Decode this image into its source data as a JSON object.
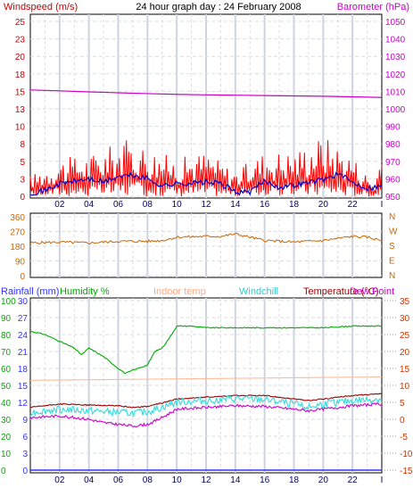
{
  "chart_data": [
    {
      "type": "line",
      "title": "24 hour graph day : 24 February 2008",
      "y_left_label": "Windspeed (m/s)",
      "y_right_label": "Barometer (hPa)",
      "x_ticks": [
        "02",
        "04",
        "06",
        "08",
        "10",
        "12",
        "14",
        "16",
        "18",
        "20",
        "22",
        "I"
      ],
      "y_left_ticks": [
        "25",
        "23",
        "20",
        "18",
        "15",
        "13",
        "10",
        "8",
        "5",
        "3",
        "0"
      ],
      "y_right_ticks": [
        "1050",
        "1040",
        "1030",
        "1020",
        "1010",
        "1000",
        "990",
        "980",
        "970",
        "960",
        "950"
      ],
      "ylim_left": [
        0,
        25
      ],
      "ylim_right": [
        950,
        1050
      ],
      "series": [
        {
          "name": "Barometer (hPa)",
          "color": "#cc00cc",
          "axis": "right",
          "x": [
            0,
            2,
            4,
            6,
            8,
            10,
            12,
            14,
            16,
            18,
            20,
            22,
            24
          ],
          "values": [
            1010.8,
            1010.3,
            1009.7,
            1009.2,
            1008.7,
            1008.3,
            1008.0,
            1007.8,
            1007.6,
            1007.4,
            1007.2,
            1006.9,
            1006.5
          ]
        },
        {
          "name": "Wind gust",
          "color": "#ff0000",
          "axis": "left",
          "x": [
            0,
            2,
            4,
            6,
            7,
            8,
            10,
            12,
            14,
            16,
            18,
            20,
            22,
            23.5,
            24
          ],
          "values": [
            2.5,
            4.5,
            5.0,
            6.5,
            7.0,
            6.0,
            4.5,
            5.5,
            3.0,
            5.5,
            5.5,
            7.5,
            5.0,
            1.5,
            6.0
          ]
        },
        {
          "name": "Wind average",
          "color": "#0000cc",
          "axis": "left",
          "x": [
            0,
            1,
            2,
            4,
            5,
            6,
            7,
            8,
            9,
            10,
            12,
            13,
            14,
            15,
            16,
            17,
            18,
            19,
            20,
            21,
            22,
            23,
            24
          ],
          "values": [
            0.5,
            0.8,
            1.8,
            2.5,
            2.0,
            2.8,
            3.0,
            2.5,
            1.5,
            1.8,
            2.0,
            1.8,
            0.6,
            0.6,
            2.2,
            1.3,
            1.6,
            2.0,
            2.4,
            3.2,
            2.0,
            1.2,
            1.5
          ]
        }
      ]
    },
    {
      "type": "line",
      "y_left_ticks": [
        "360",
        "270",
        "180",
        "90",
        "0"
      ],
      "y_right_ticks": [
        "N",
        "W",
        "S",
        "E",
        "N"
      ],
      "ylim": [
        0,
        360
      ],
      "series": [
        {
          "name": "Wind direction",
          "color": "#cc6600",
          "x": [
            0,
            2,
            4,
            6,
            8,
            9,
            10,
            12,
            13,
            14,
            15,
            16,
            18,
            20,
            22,
            23,
            24
          ],
          "values": [
            200,
            205,
            200,
            210,
            210,
            215,
            235,
            240,
            240,
            255,
            235,
            215,
            205,
            215,
            240,
            235,
            215
          ]
        }
      ]
    },
    {
      "type": "line",
      "legend": [
        "Rainfall (mm)",
        "Humidity %",
        "Indoor temp",
        "Windchill",
        "Temperature (°C)",
        "Dew Point"
      ],
      "y_rain_ticks": [
        "30",
        "27",
        "24",
        "21",
        "18",
        "15",
        "12",
        "9",
        "6",
        "3",
        "0"
      ],
      "y_hum_ticks": [
        "100",
        "90",
        "80",
        "70",
        "60",
        "50",
        "40",
        "30",
        "20",
        "10",
        "0"
      ],
      "y_right_ticks": [
        "35",
        "30",
        "25",
        "20",
        "15",
        "10",
        "5",
        "0",
        "-5",
        "-10",
        "-15"
      ],
      "ylim_temp": [
        -15,
        35
      ],
      "series": [
        {
          "name": "Humidity %",
          "color": "#00aa00",
          "axis": "humidity",
          "x": [
            0,
            1,
            2,
            3,
            3.5,
            4,
            5,
            6,
            6.5,
            7,
            8,
            8.5,
            9,
            9.5,
            10,
            11,
            12,
            14,
            16,
            18,
            20,
            22,
            24
          ],
          "values": [
            82,
            80,
            76,
            72,
            68,
            72,
            67,
            60,
            57,
            59,
            62,
            70,
            72,
            78,
            85,
            85,
            84,
            84,
            84,
            84,
            84,
            85,
            85
          ]
        },
        {
          "name": "Indoor temp",
          "color": "#ffbb99",
          "axis": "temp",
          "x": [
            0,
            24
          ],
          "values": [
            11.5,
            12.5
          ]
        },
        {
          "name": "Temperature (°C)",
          "color": "#990000",
          "axis": "temp",
          "x": [
            0,
            2,
            4,
            6,
            7,
            8,
            9,
            10,
            12,
            14,
            16,
            18,
            19,
            20,
            22,
            24
          ],
          "values": [
            3.5,
            4.5,
            4.2,
            4.0,
            3.5,
            3.8,
            4.8,
            6.0,
            6.5,
            7.0,
            7.0,
            6.0,
            5.5,
            6.0,
            7.0,
            7.5
          ]
        },
        {
          "name": "Windchill",
          "color": "#33dddd",
          "axis": "temp",
          "x": [
            0,
            2,
            4,
            6,
            7,
            8,
            9,
            10,
            12,
            14,
            16,
            18,
            19,
            20,
            22,
            24
          ],
          "values": [
            2.0,
            3.0,
            2.5,
            2.0,
            1.8,
            2.2,
            3.5,
            5.0,
            5.5,
            6.0,
            5.8,
            4.5,
            3.5,
            4.5,
            5.5,
            6.0
          ]
        },
        {
          "name": "Dew Point",
          "color": "#cc00cc",
          "axis": "temp",
          "x": [
            0,
            2,
            4,
            5,
            6,
            7,
            8,
            9,
            10,
            12,
            14,
            16,
            18,
            19,
            20,
            22,
            24
          ],
          "values": [
            0.5,
            1.0,
            0.0,
            -1.0,
            -1.5,
            -2.0,
            -1.5,
            0.5,
            3.0,
            3.5,
            4.0,
            3.8,
            3.0,
            2.5,
            3.0,
            4.0,
            4.5
          ]
        },
        {
          "name": "Rainfall (mm)",
          "color": "#3333ff",
          "axis": "rain",
          "x": [
            0,
            24
          ],
          "values": [
            0,
            0
          ]
        }
      ]
    }
  ]
}
